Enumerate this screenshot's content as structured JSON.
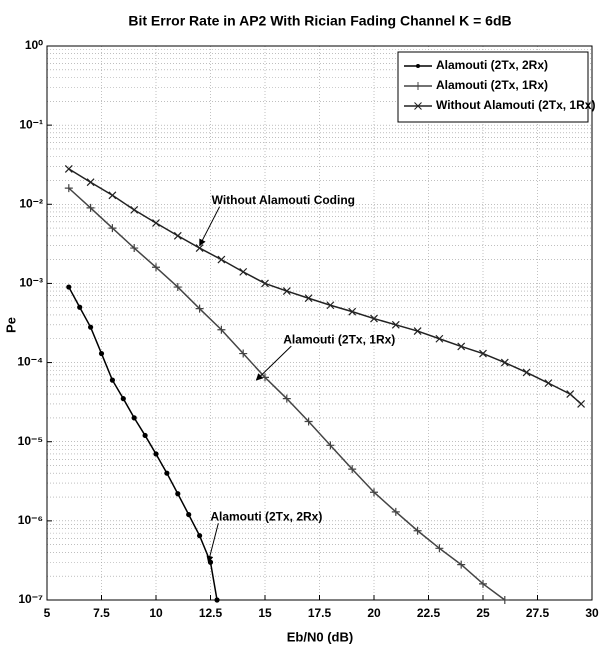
{
  "chart_data": {
    "type": "line",
    "title": "Bit Error Rate in AP2 With Rician Fading Channel K = 6dB",
    "xlabel": "Eb/N0 (dB)",
    "ylabel": "Pe",
    "xlim": [
      5,
      30
    ],
    "xticks": [
      5,
      7.5,
      10,
      12.5,
      15,
      17.5,
      20,
      22.5,
      25,
      27.5,
      30
    ],
    "ylim": [
      1e-07,
      1
    ],
    "ylog": true,
    "yticks": [
      {
        "value": 1e-07,
        "label": "10⁻⁷"
      },
      {
        "value": 1e-06,
        "label": "10⁻⁶"
      },
      {
        "value": 1e-05,
        "label": "10⁻⁵"
      },
      {
        "value": 0.0001,
        "label": "10⁻⁴"
      },
      {
        "value": 0.001,
        "label": "10⁻³"
      },
      {
        "value": 0.01,
        "label": "10⁻²"
      },
      {
        "value": 0.1,
        "label": "10⁻¹"
      },
      {
        "value": 1,
        "label": "10⁰"
      }
    ],
    "grid": true,
    "legend": "upper right",
    "series": [
      {
        "name": "Alamouti (2Tx, 2Rx)",
        "color": "#000000",
        "marker": "dot",
        "x": [
          6,
          6.5,
          7,
          7.5,
          8,
          8.5,
          9,
          9.5,
          10,
          10.5,
          11,
          11.5,
          12,
          12.5,
          12.8
        ],
        "values": [
          0.0009,
          0.0005,
          0.00028,
          0.00013,
          6e-05,
          3.5e-05,
          2e-05,
          1.2e-05,
          7e-06,
          4e-06,
          2.2e-06,
          1.2e-06,
          6.5e-07,
          3e-07,
          1e-07
        ]
      },
      {
        "name": "Alamouti (2Tx, 1Rx)",
        "color": "#444444",
        "marker": "plus",
        "x": [
          6,
          7,
          8,
          9,
          10,
          11,
          12,
          13,
          14,
          15,
          16,
          17,
          18,
          19,
          20,
          21,
          22,
          23,
          24,
          25,
          26
        ],
        "values": [
          0.016,
          0.009,
          0.005,
          0.0028,
          0.0016,
          0.0009,
          0.00048,
          0.00026,
          0.00013,
          6.5e-05,
          3.5e-05,
          1.8e-05,
          9e-06,
          4.5e-06,
          2.3e-06,
          1.3e-06,
          7.5e-07,
          4.5e-07,
          2.8e-07,
          1.6e-07,
          1e-07
        ]
      },
      {
        "name": "Without Alamouti (2Tx, 1Rx)",
        "color": "#222222",
        "marker": "cross",
        "x": [
          6,
          7,
          8,
          9,
          10,
          11,
          12,
          13,
          14,
          15,
          16,
          17,
          18,
          19,
          20,
          21,
          22,
          23,
          24,
          25,
          26,
          27,
          28,
          29,
          29.5
        ],
        "values": [
          0.028,
          0.019,
          0.013,
          0.0085,
          0.0058,
          0.004,
          0.0028,
          0.002,
          0.0014,
          0.001,
          0.0008,
          0.00065,
          0.00053,
          0.00044,
          0.00036,
          0.0003,
          0.00025,
          0.0002,
          0.00016,
          0.00013,
          0.0001,
          7.5e-05,
          5.5e-05,
          4e-05,
          3e-05
        ]
      }
    ],
    "annotations": [
      {
        "text": "Without Alamouti Coding",
        "x": 12,
        "y": 0.003
      },
      {
        "text": "Alamouti (2Tx, 1Rx)",
        "x": 14.6,
        "y": 6e-05
      },
      {
        "text": "Alamouti (2Tx, 2Rx)",
        "x": 12.4,
        "y": 3e-07
      }
    ]
  }
}
